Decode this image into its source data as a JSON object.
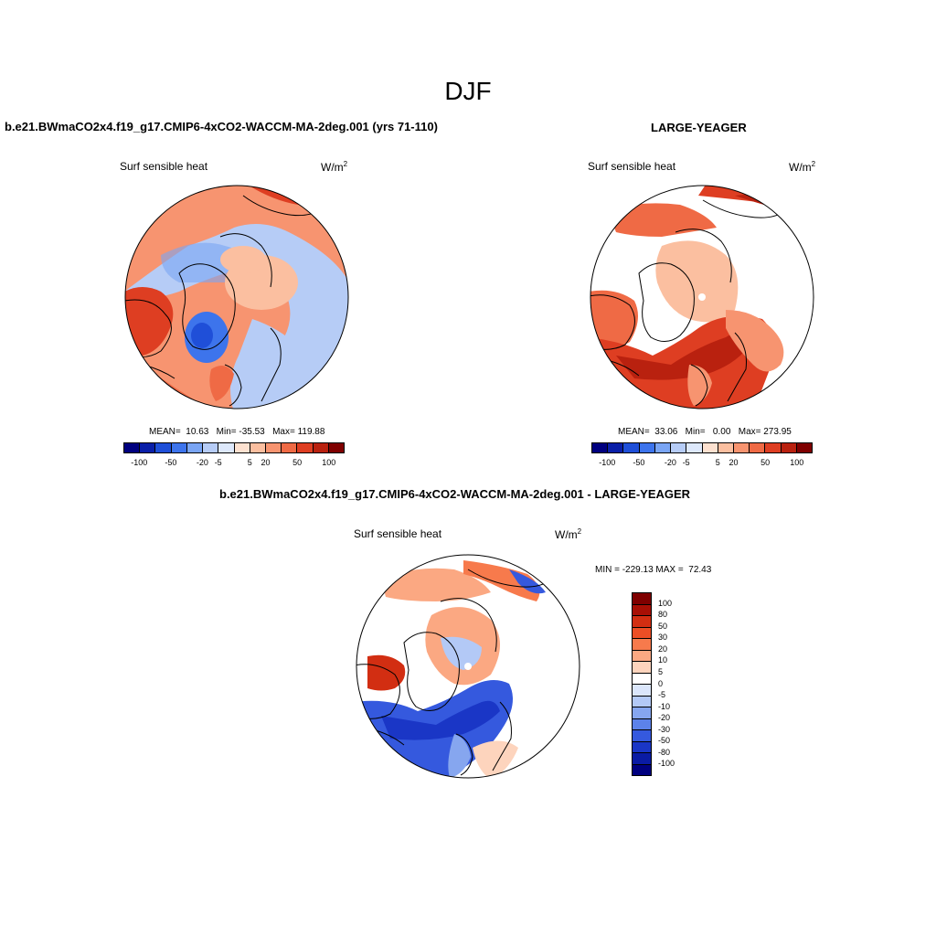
{
  "title": "DJF",
  "panels": {
    "model": {
      "case_title": "b.e21.BWmaCO2x4.f19_g17.CMIP6-4xCO2-WACCM-MA-2deg.001 (yrs 71-110)",
      "variable": "Surf sensible heat",
      "units": "W/m",
      "units_exp": "2",
      "stats": "MEAN=  10.63   Min= -35.53   Max= 119.88",
      "colorbar_labels": [
        "-100",
        "-50",
        "-20",
        "-5",
        "5",
        "20",
        "50",
        "100"
      ]
    },
    "obs": {
      "case_title": "LARGE-YEAGER",
      "variable": "Surf sensible heat",
      "units": "W/m",
      "units_exp": "2",
      "stats": "MEAN=  33.06   Min=   0.00   Max= 273.95",
      "colorbar_labels": [
        "-100",
        "-50",
        "-20",
        "-5",
        "5",
        "20",
        "50",
        "100"
      ]
    },
    "diff": {
      "case_title": "b.e21.BWmaCO2x4.f19_g17.CMIP6-4xCO2-WACCM-MA-2deg.001 - LARGE-YEAGER",
      "variable": "Surf sensible heat",
      "units": "W/m",
      "units_exp": "2",
      "stats": "MIN = -229.13 MAX =  72.43",
      "colorbar_labels": [
        "100",
        "80",
        "50",
        "30",
        "20",
        "10",
        "5",
        "0",
        "-5",
        "-10",
        "-20",
        "-30",
        "-50",
        "-80",
        "-100"
      ]
    }
  },
  "colors": {
    "abs_scale": [
      "#00007f",
      "#0a1fa8",
      "#1f4fd8",
      "#3d74ec",
      "#7aa5f4",
      "#b6ccf6",
      "#dde8fb",
      "#fde1d0",
      "#fbbfa0",
      "#f79470",
      "#ef6a45",
      "#de3e22",
      "#b9210f",
      "#7f0000"
    ],
    "diff_scale": [
      "#7f0000",
      "#a80f05",
      "#d22e12",
      "#ec4e25",
      "#f77a4c",
      "#fba882",
      "#fdd4bd",
      "#ffffff",
      "#dbe6fb",
      "#b3c9f6",
      "#86a6ef",
      "#5c82ea",
      "#3559de",
      "#1a36c6",
      "#0a1ba4",
      "#00007f"
    ]
  }
}
